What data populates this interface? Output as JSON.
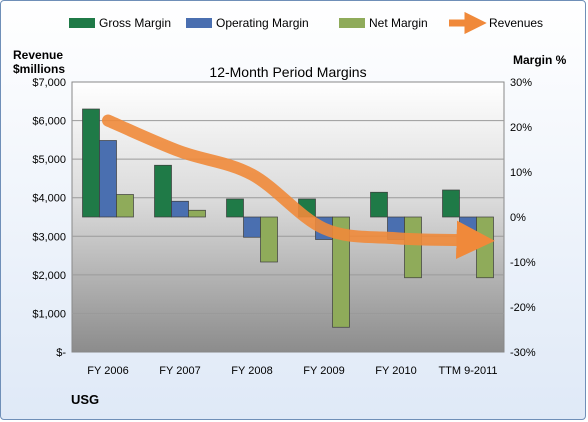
{
  "chart_data": {
    "type": "bar",
    "title": "12-Month Period Margins",
    "company": "USG",
    "left_axis_label_line1": "Revenue",
    "left_axis_label_line2": "$millions",
    "right_axis_label": "Margin %",
    "categories": [
      "FY 2006",
      "FY 2007",
      "FY 2008",
      "FY 2009",
      "FY 2010",
      "TTM 9-2011"
    ],
    "left_axis": {
      "min": 0,
      "max": 7000,
      "step": 1000,
      "tick_labels": [
        "$-",
        "$1,000",
        "$2,000",
        "$3,000",
        "$4,000",
        "$5,000",
        "$6,000",
        "$7,000"
      ]
    },
    "right_axis": {
      "min": -30,
      "max": 30,
      "step": 10,
      "tick_labels": [
        "-30%",
        "-20%",
        "-10%",
        "0%",
        "10%",
        "20%",
        "30%"
      ]
    },
    "series": [
      {
        "name": "Gross Margin",
        "axis": "right",
        "color": "#1f7a47",
        "values": [
          24,
          11.5,
          4,
          4,
          5.5,
          6
        ]
      },
      {
        "name": "Operating Margin",
        "axis": "right",
        "color": "#4a6fb0",
        "values": [
          17,
          3.5,
          -4.5,
          -5,
          -5,
          -4.5
        ]
      },
      {
        "name": "Net Margin",
        "axis": "right",
        "color": "#8fab5a",
        "values": [
          5,
          1.5,
          -10,
          -24.5,
          -13.5,
          -13.5
        ]
      },
      {
        "name": "Revenues",
        "axis": "left",
        "type": "line",
        "color": "#f0893a",
        "values": [
          6000,
          5200,
          4600,
          3200,
          2950,
          2900
        ]
      }
    ],
    "grid": true,
    "legend_position": "top"
  }
}
